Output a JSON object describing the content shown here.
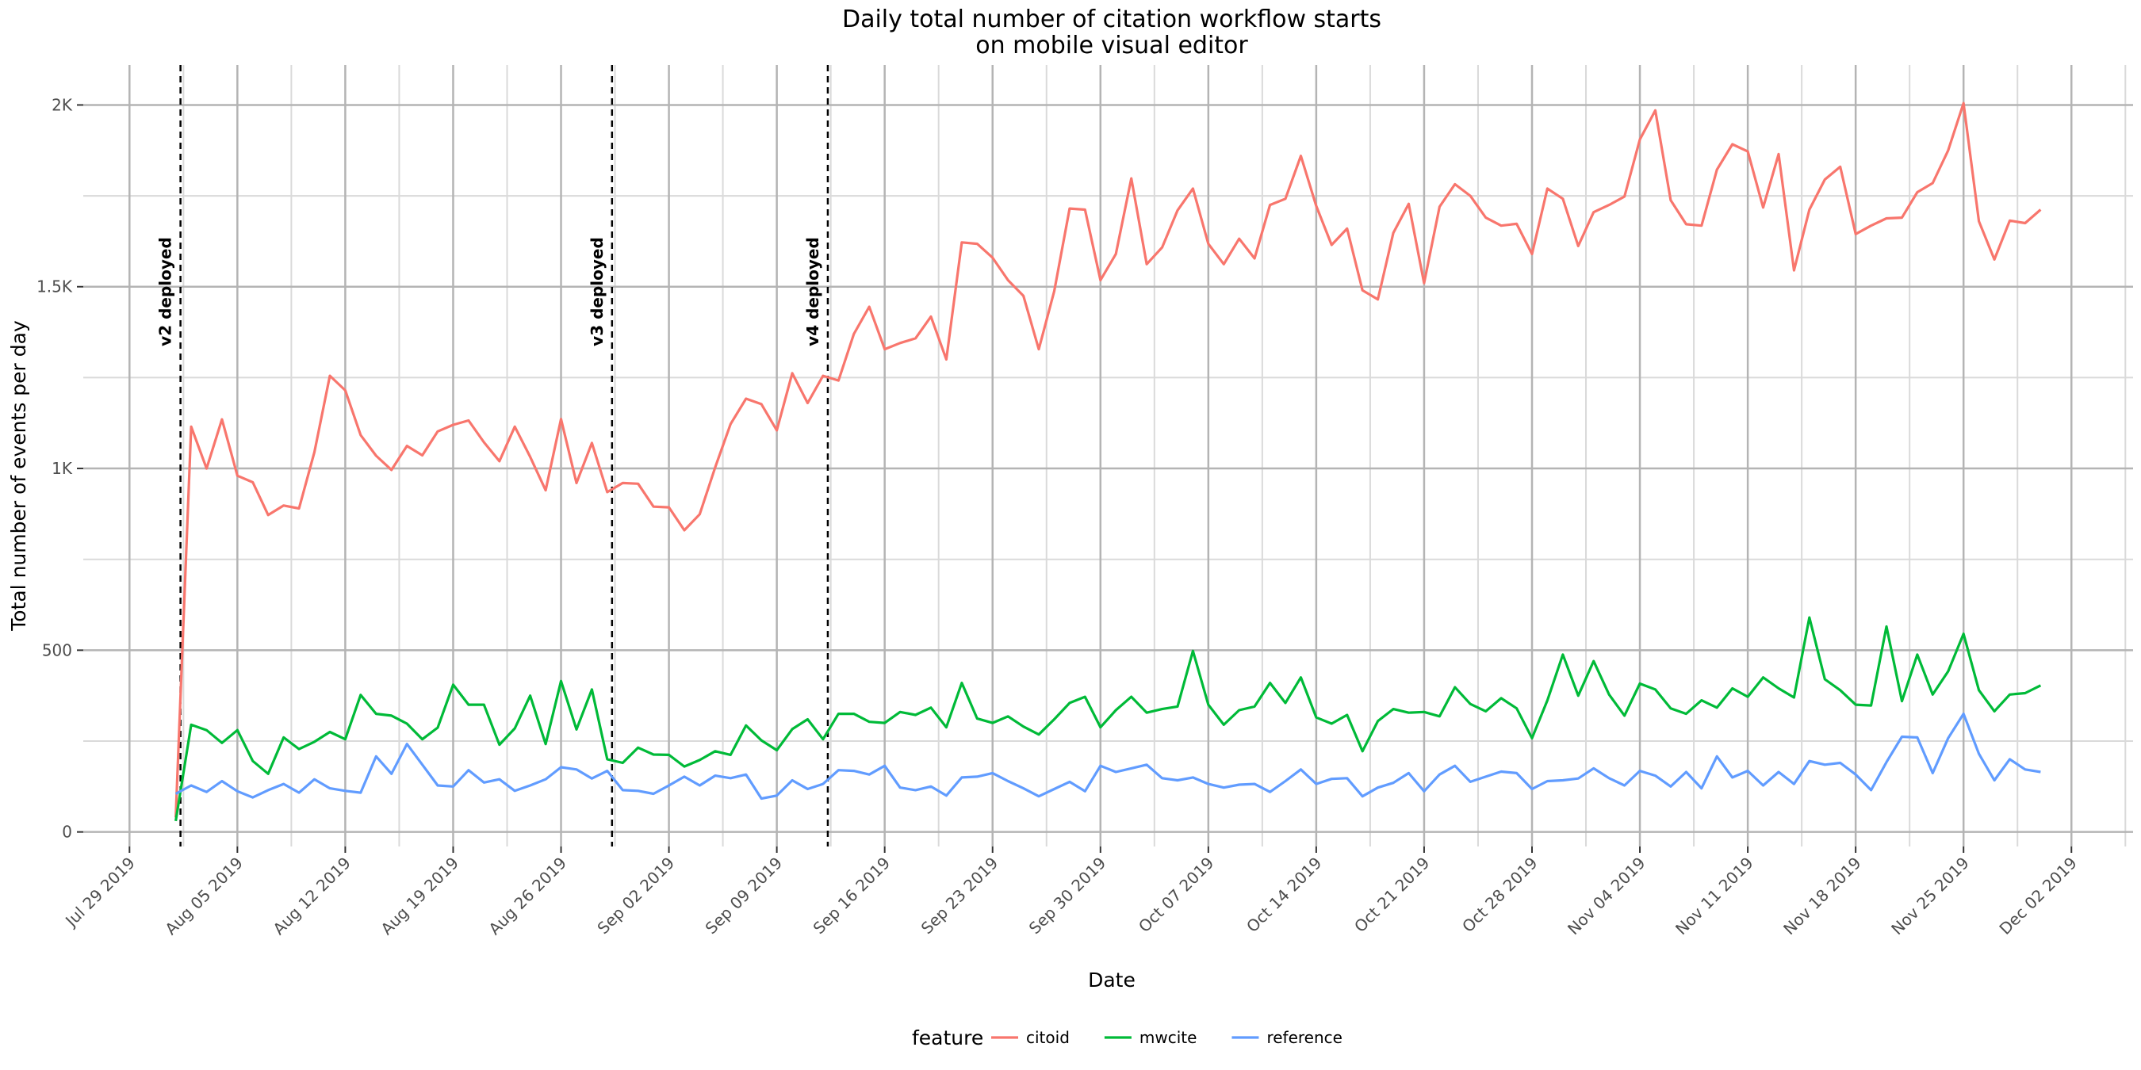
{
  "chart_data": {
    "type": "line",
    "title": [
      "Daily total number of citation workflow starts",
      "on mobile visual editor"
    ],
    "xlabel": "Date",
    "ylabel": "Total number of events per day",
    "x_range": [
      "2019-07-26",
      "2019-12-06"
    ],
    "ylim": [
      -40,
      2110
    ],
    "grid": true,
    "legend_position": "bottom",
    "x_ticks": [
      {
        "date": "2019-07-29",
        "label": "Jul 29 2019"
      },
      {
        "date": "2019-08-05",
        "label": "Aug 05 2019"
      },
      {
        "date": "2019-08-12",
        "label": "Aug 12 2019"
      },
      {
        "date": "2019-08-19",
        "label": "Aug 19 2019"
      },
      {
        "date": "2019-08-26",
        "label": "Aug 26 2019"
      },
      {
        "date": "2019-09-02",
        "label": "Sep 02 2019"
      },
      {
        "date": "2019-09-09",
        "label": "Sep 09 2019"
      },
      {
        "date": "2019-09-16",
        "label": "Sep 16 2019"
      },
      {
        "date": "2019-09-23",
        "label": "Sep 23 2019"
      },
      {
        "date": "2019-09-30",
        "label": "Sep 30 2019"
      },
      {
        "date": "2019-10-07",
        "label": "Oct 07 2019"
      },
      {
        "date": "2019-10-14",
        "label": "Oct 14 2019"
      },
      {
        "date": "2019-10-21",
        "label": "Oct 21 2019"
      },
      {
        "date": "2019-10-28",
        "label": "Oct 28 2019"
      },
      {
        "date": "2019-11-04",
        "label": "Nov 04 2019"
      },
      {
        "date": "2019-11-11",
        "label": "Nov 11 2019"
      },
      {
        "date": "2019-11-18",
        "label": "Nov 18 2019"
      },
      {
        "date": "2019-11-25",
        "label": "Nov 25 2019"
      },
      {
        "date": "2019-12-02",
        "label": "Dec 02 2019"
      }
    ],
    "y_ticks": [
      {
        "value": 0,
        "label": "0"
      },
      {
        "value": 500,
        "label": "500"
      },
      {
        "value": 1000,
        "label": "1K"
      },
      {
        "value": 1500,
        "label": "1.5K"
      },
      {
        "value": 2000,
        "label": "2K"
      }
    ],
    "vlines": [
      {
        "date": "2019-08-01",
        "label": "v2 deployed"
      },
      {
        "date": "2019-08-29",
        "label": "v3 deployed"
      },
      {
        "date": "2019-09-12",
        "label": "v4 deployed"
      }
    ],
    "legend_title": "feature",
    "x_start": "2019-08-01",
    "series": [
      {
        "name": "citoid",
        "color": "#F8766D",
        "values": [
          40,
          1115,
          1000,
          1135,
          980,
          962,
          872,
          898,
          890,
          1045,
          1255,
          1215,
          1092,
          1035,
          996,
          1062,
          1036,
          1102,
          1120,
          1132,
          1072,
          1020,
          1115,
          1032,
          940,
          1136,
          960,
          1070,
          935,
          960,
          958,
          895,
          893,
          830,
          874,
          1003,
          1122,
          1192,
          1177,
          1105,
          1262,
          1180,
          1255,
          1242,
          1370,
          1445,
          1328,
          1345,
          1358,
          1418,
          1300,
          1622,
          1618,
          1580,
          1518,
          1475,
          1328,
          1488,
          1715,
          1712,
          1518,
          1590,
          1798,
          1562,
          1608,
          1710,
          1770,
          1618,
          1562,
          1632,
          1578,
          1725,
          1742,
          1860,
          1722,
          1615,
          1660,
          1490,
          1465,
          1648,
          1728,
          1510,
          1720,
          1782,
          1750,
          1690,
          1668,
          1673,
          1590,
          1770,
          1742,
          1612,
          1705,
          1725,
          1748,
          1905,
          1985,
          1738,
          1672,
          1668,
          1822,
          1892,
          1872,
          1718,
          1865,
          1545,
          1712,
          1795,
          1830,
          1645,
          1668,
          1688,
          1690,
          1760,
          1785,
          1875,
          2005,
          1680,
          1575,
          1682,
          1675,
          1712
        ]
      },
      {
        "name": "mwcite",
        "color": "#00BA38",
        "values": [
          30,
          295,
          280,
          245,
          280,
          195,
          160,
          260,
          228,
          248,
          275,
          255,
          377,
          325,
          320,
          298,
          255,
          287,
          405,
          350,
          350,
          240,
          285,
          375,
          242,
          415,
          282,
          392,
          200,
          190,
          232,
          213,
          212,
          180,
          198,
          222,
          212,
          293,
          252,
          225,
          283,
          310,
          255,
          325,
          325,
          303,
          300,
          330,
          322,
          342,
          288,
          410,
          312,
          300,
          318,
          290,
          268,
          310,
          355,
          372,
          288,
          335,
          372,
          328,
          338,
          345,
          498,
          350,
          295,
          335,
          345,
          410,
          355,
          425,
          315,
          298,
          322,
          222,
          305,
          338,
          328,
          330,
          318,
          398,
          352,
          332,
          368,
          340,
          258,
          362,
          488,
          375,
          470,
          378,
          320,
          408,
          392,
          340,
          325,
          362,
          342,
          395,
          372,
          425,
          395,
          370,
          590,
          420,
          390,
          350,
          348,
          565,
          360,
          488,
          378,
          442,
          545,
          390,
          332,
          378,
          382,
          403
        ]
      },
      {
        "name": "reference",
        "color": "#619CFF",
        "values": [
          105,
          128,
          110,
          140,
          112,
          95,
          115,
          132,
          108,
          145,
          120,
          113,
          108,
          208,
          160,
          242,
          185,
          128,
          125,
          170,
          136,
          145,
          113,
          128,
          145,
          178,
          172,
          147,
          168,
          115,
          113,
          105,
          128,
          152,
          128,
          155,
          148,
          158,
          92,
          100,
          142,
          118,
          132,
          170,
          168,
          158,
          182,
          122,
          115,
          125,
          100,
          150,
          152,
          162,
          140,
          120,
          98,
          118,
          138,
          112,
          182,
          165,
          175,
          185,
          148,
          142,
          150,
          132,
          122,
          130,
          132,
          110,
          140,
          172,
          132,
          146,
          148,
          98,
          122,
          135,
          162,
          112,
          158,
          182,
          138,
          152,
          166,
          162,
          118,
          140,
          142,
          147,
          175,
          148,
          128,
          168,
          155,
          125,
          165,
          120,
          208,
          150,
          168,
          128,
          165,
          132,
          195,
          185,
          190,
          158,
          115,
          192,
          262,
          260,
          162,
          258,
          325,
          215,
          142,
          200,
          172,
          165
        ]
      }
    ]
  }
}
